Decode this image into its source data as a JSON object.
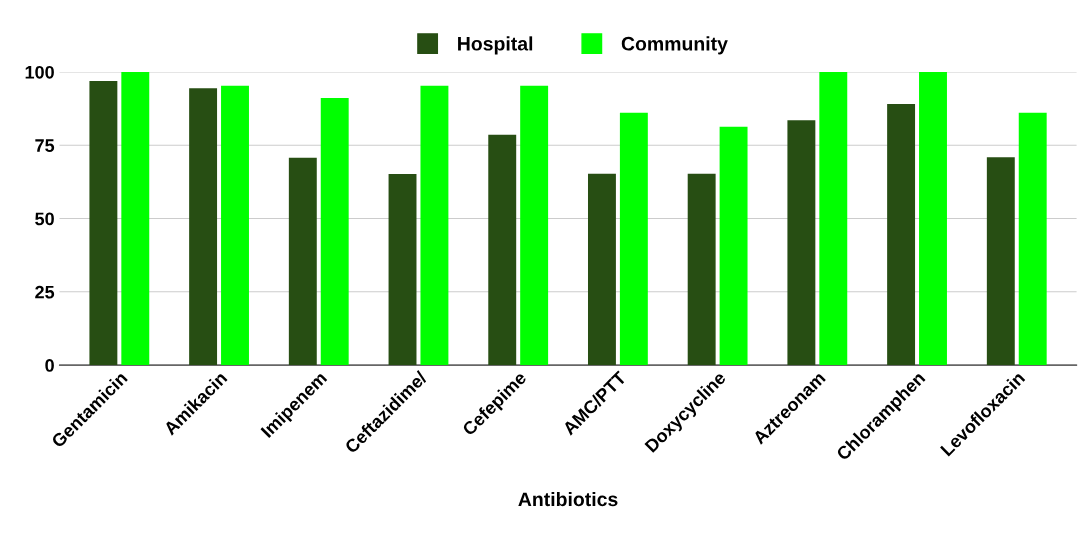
{
  "chart_data": {
    "type": "bar",
    "xlabel": "Antibiotics",
    "categories": [
      "Gentamicin",
      "Amikacin",
      "Imipenem",
      "Ceftazidime/",
      "Cefepime",
      "AMC/PTT",
      "Doxycycline",
      "Aztreonam",
      "Chloramphen",
      "Levofloxacin"
    ],
    "series": [
      {
        "name": "Hospital",
        "color": "#274e13",
        "values": [
          96.9,
          94.4,
          70.7,
          65.2,
          78.6,
          65.3,
          65.3,
          83.5,
          89.1,
          70.9
        ]
      },
      {
        "name": "Community",
        "color": "#00ff00",
        "values": [
          100,
          95.3,
          91.1,
          95.3,
          95.3,
          86.1,
          81.3,
          100,
          100,
          86.1
        ]
      }
    ],
    "ylim": [
      0,
      100
    ],
    "yticks": [
      0,
      25,
      50,
      75,
      100
    ],
    "grid": "y",
    "legend": "top"
  }
}
